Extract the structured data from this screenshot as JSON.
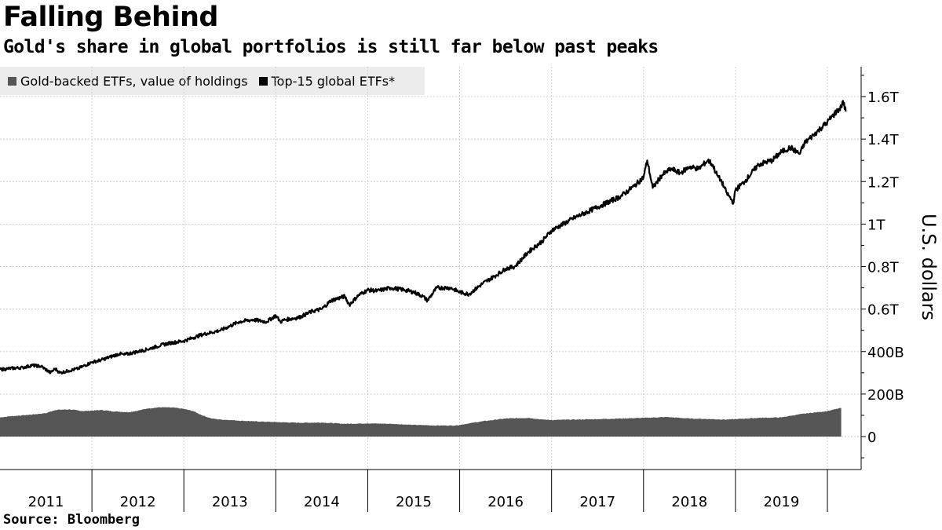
{
  "header": {
    "title": "Falling Behind",
    "subtitle": "Gold's share in global portfolios is still far below past peaks"
  },
  "footer": {
    "source": "Source: Bloomberg"
  },
  "chart_data": {
    "type": "area",
    "title": "Falling Behind",
    "subtitle": "Gold's share in global portfolios is still far below past peaks",
    "ylabel": "U.S. dollars",
    "ylim_billions": [
      -160,
      1740
    ],
    "yticks": [
      {
        "value": 0,
        "label": "0"
      },
      {
        "value": 200,
        "label": "200B"
      },
      {
        "value": 400,
        "label": "400B"
      },
      {
        "value": 600,
        "label": "0.6T"
      },
      {
        "value": 800,
        "label": "0.8T"
      },
      {
        "value": 1000,
        "label": "1T"
      },
      {
        "value": 1200,
        "label": "1.2T"
      },
      {
        "value": 1400,
        "label": "1.4T"
      },
      {
        "value": 1600,
        "label": "1.6T"
      }
    ],
    "x_range": [
      2011.0,
      2020.25
    ],
    "year_labels": [
      "2011",
      "2012",
      "2013",
      "2014",
      "2015",
      "2016",
      "2017",
      "2018",
      "2019"
    ],
    "grid": true,
    "legend_position": "top-left",
    "colors": {
      "gold": "#555555",
      "top15": "#000000",
      "grid": "#cfcfcf",
      "legend_bg": "#ececec"
    },
    "series": [
      {
        "name": "Gold-backed ETFs, value of holdings",
        "type": "area",
        "x": [
          2011.0,
          2011.1,
          2011.25,
          2011.5,
          2011.6,
          2011.75,
          2011.9,
          2012.0,
          2012.1,
          2012.25,
          2012.4,
          2012.5,
          2012.6,
          2012.75,
          2012.9,
          2013.0,
          2013.1,
          2013.2,
          2013.3,
          2013.4,
          2013.5,
          2013.6,
          2013.75,
          2014.0,
          2014.25,
          2014.5,
          2014.75,
          2015.0,
          2015.25,
          2015.5,
          2015.75,
          2015.95,
          2016.0,
          2016.1,
          2016.25,
          2016.5,
          2016.75,
          2016.9,
          2017.0,
          2017.25,
          2017.5,
          2017.75,
          2018.0,
          2018.25,
          2018.5,
          2018.75,
          2018.9,
          2019.0,
          2019.25,
          2019.5,
          2019.6,
          2019.75,
          2020.0,
          2020.15
        ],
        "values": [
          90,
          95,
          100,
          110,
          125,
          128,
          120,
          122,
          125,
          118,
          115,
          122,
          132,
          138,
          136,
          130,
          120,
          100,
          85,
          80,
          78,
          75,
          72,
          68,
          65,
          66,
          60,
          62,
          60,
          55,
          52,
          52,
          55,
          62,
          72,
          85,
          88,
          80,
          78,
          80,
          82,
          85,
          88,
          92,
          85,
          82,
          80,
          82,
          88,
          90,
          98,
          108,
          120,
          135
        ]
      },
      {
        "name": "Top-15 global ETFs*",
        "type": "line",
        "x": [
          2011.0,
          2011.1,
          2011.25,
          2011.35,
          2011.45,
          2011.55,
          2011.6,
          2011.65,
          2011.75,
          2011.85,
          2011.9,
          2012.0,
          2012.1,
          2012.2,
          2012.3,
          2012.35,
          2012.45,
          2012.6,
          2012.75,
          2012.85,
          2013.0,
          2013.1,
          2013.2,
          2013.3,
          2013.4,
          2013.5,
          2013.6,
          2013.75,
          2013.9,
          2014.0,
          2014.05,
          2014.1,
          2014.25,
          2014.4,
          2014.5,
          2014.6,
          2014.75,
          2014.8,
          2014.9,
          2015.0,
          2015.1,
          2015.25,
          2015.4,
          2015.5,
          2015.6,
          2015.65,
          2015.75,
          2015.9,
          2016.0,
          2016.1,
          2016.25,
          2016.4,
          2016.5,
          2016.6,
          2016.75,
          2016.9,
          2017.0,
          2017.25,
          2017.5,
          2017.75,
          2017.9,
          2018.0,
          2018.04,
          2018.1,
          2018.2,
          2018.3,
          2018.4,
          2018.5,
          2018.6,
          2018.7,
          2018.75,
          2018.8,
          2018.85,
          2018.9,
          2018.98,
          2019.0,
          2019.1,
          2019.25,
          2019.4,
          2019.5,
          2019.6,
          2019.7,
          2019.75,
          2019.85,
          2020.0,
          2020.1,
          2020.15,
          2020.17,
          2020.2
        ],
        "values": [
          315,
          320,
          325,
          335,
          330,
          300,
          320,
          300,
          310,
          320,
          330,
          350,
          360,
          375,
          390,
          385,
          395,
          410,
          430,
          440,
          450,
          465,
          480,
          490,
          500,
          520,
          540,
          550,
          540,
          570,
          540,
          550,
          560,
          590,
          600,
          640,
          660,
          620,
          665,
          690,
          685,
          700,
          690,
          680,
          660,
          640,
          700,
          700,
          680,
          670,
          720,
          760,
          790,
          800,
          870,
          920,
          970,
          1030,
          1080,
          1130,
          1180,
          1220,
          1300,
          1170,
          1230,
          1260,
          1240,
          1270,
          1260,
          1300,
          1280,
          1230,
          1200,
          1150,
          1100,
          1160,
          1200,
          1280,
          1300,
          1340,
          1360,
          1330,
          1380,
          1420,
          1480,
          1530,
          1550,
          1580,
          1530
        ]
      }
    ]
  }
}
